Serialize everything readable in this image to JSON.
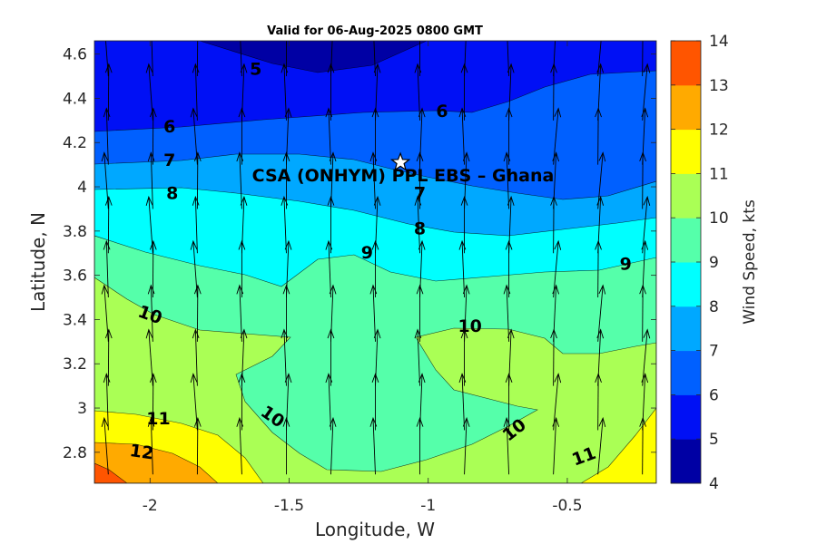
{
  "chart_data": {
    "type": "contour",
    "title": "Valid for 06-Aug-2025 0800 GMT",
    "xlabel": "Longitude, W",
    "ylabel": "Latitude, N",
    "xlim": [
      -2.2,
      -0.18
    ],
    "ylim": [
      2.66,
      4.66
    ],
    "x_ticks": [
      -2,
      -1.5,
      -1,
      -0.5
    ],
    "x_tick_labels": [
      "-2",
      "-1.5",
      "-1",
      "-0.5"
    ],
    "y_ticks": [
      2.8,
      3,
      3.2,
      3.4,
      3.6,
      3.8,
      4,
      4.2,
      4.4,
      4.6
    ],
    "y_tick_labels": [
      "2.8",
      "3",
      "3.2",
      "3.4",
      "3.6",
      "3.8",
      "4",
      "4.2",
      "4.4",
      "4.6"
    ],
    "colorbar": {
      "label": "Wind Speed, kts",
      "ticks": [
        4,
        5,
        6,
        7,
        8,
        9,
        10,
        11,
        12,
        13,
        14
      ],
      "tick_labels": [
        "4",
        "5",
        "6",
        "7",
        "8",
        "9",
        "10",
        "11",
        "12",
        "13",
        "14"
      ],
      "colors": [
        "#0000a4",
        "#0010f5",
        "#0060ff",
        "#00a8ff",
        "#00ffff",
        "#55ffaa",
        "#aaff55",
        "#ffff00",
        "#ffaa00",
        "#ff5500"
      ]
    },
    "contour_levels": [
      5,
      6,
      7,
      8,
      9,
      10,
      11,
      12
    ],
    "contour_labels": [
      {
        "text": "5",
        "lon": -1.62,
        "lat": 4.53,
        "angle": 0
      },
      {
        "text": "6",
        "lon": -1.93,
        "lat": 4.27,
        "angle": 0
      },
      {
        "text": "6",
        "lon": -0.95,
        "lat": 4.34,
        "angle": 0
      },
      {
        "text": "7",
        "lon": -1.93,
        "lat": 4.12,
        "angle": 0
      },
      {
        "text": "7",
        "lon": -1.03,
        "lat": 3.97,
        "angle": 0
      },
      {
        "text": "8",
        "lon": -1.92,
        "lat": 3.97,
        "angle": 0
      },
      {
        "text": "8",
        "lon": -1.03,
        "lat": 3.81,
        "angle": 0
      },
      {
        "text": "9",
        "lon": -1.22,
        "lat": 3.7,
        "angle": 0
      },
      {
        "text": "9",
        "lon": -0.29,
        "lat": 3.65,
        "angle": 0
      },
      {
        "text": "10",
        "lon": -2.0,
        "lat": 3.42,
        "angle": 20
      },
      {
        "text": "10",
        "lon": -0.85,
        "lat": 3.37,
        "angle": 0
      },
      {
        "text": "10",
        "lon": -1.56,
        "lat": 2.96,
        "angle": 35
      },
      {
        "text": "10",
        "lon": -0.69,
        "lat": 2.9,
        "angle": -38
      },
      {
        "text": "11",
        "lon": -1.97,
        "lat": 2.95,
        "angle": 0
      },
      {
        "text": "11",
        "lon": -0.44,
        "lat": 2.78,
        "angle": -20
      },
      {
        "text": "12",
        "lon": -2.03,
        "lat": 2.8,
        "angle": 8
      }
    ],
    "site": {
      "label": "CSA (ONHYM) PPL EBS  – Ghana",
      "lon": -1.1,
      "lat": 4.11,
      "marker": "star"
    },
    "vector_field": {
      "quantity": "wind direction",
      "lons": [
        -2.15,
        -1.99,
        -1.83,
        -1.67,
        -1.51,
        -1.35,
        -1.19,
        -1.03,
        -0.87,
        -0.71,
        -0.55,
        -0.39,
        -0.23
      ],
      "lats": [
        2.7,
        2.9,
        3.1,
        3.3,
        3.5,
        3.7,
        3.9,
        4.1,
        4.3,
        4.5
      ],
      "direction": "northward"
    }
  }
}
